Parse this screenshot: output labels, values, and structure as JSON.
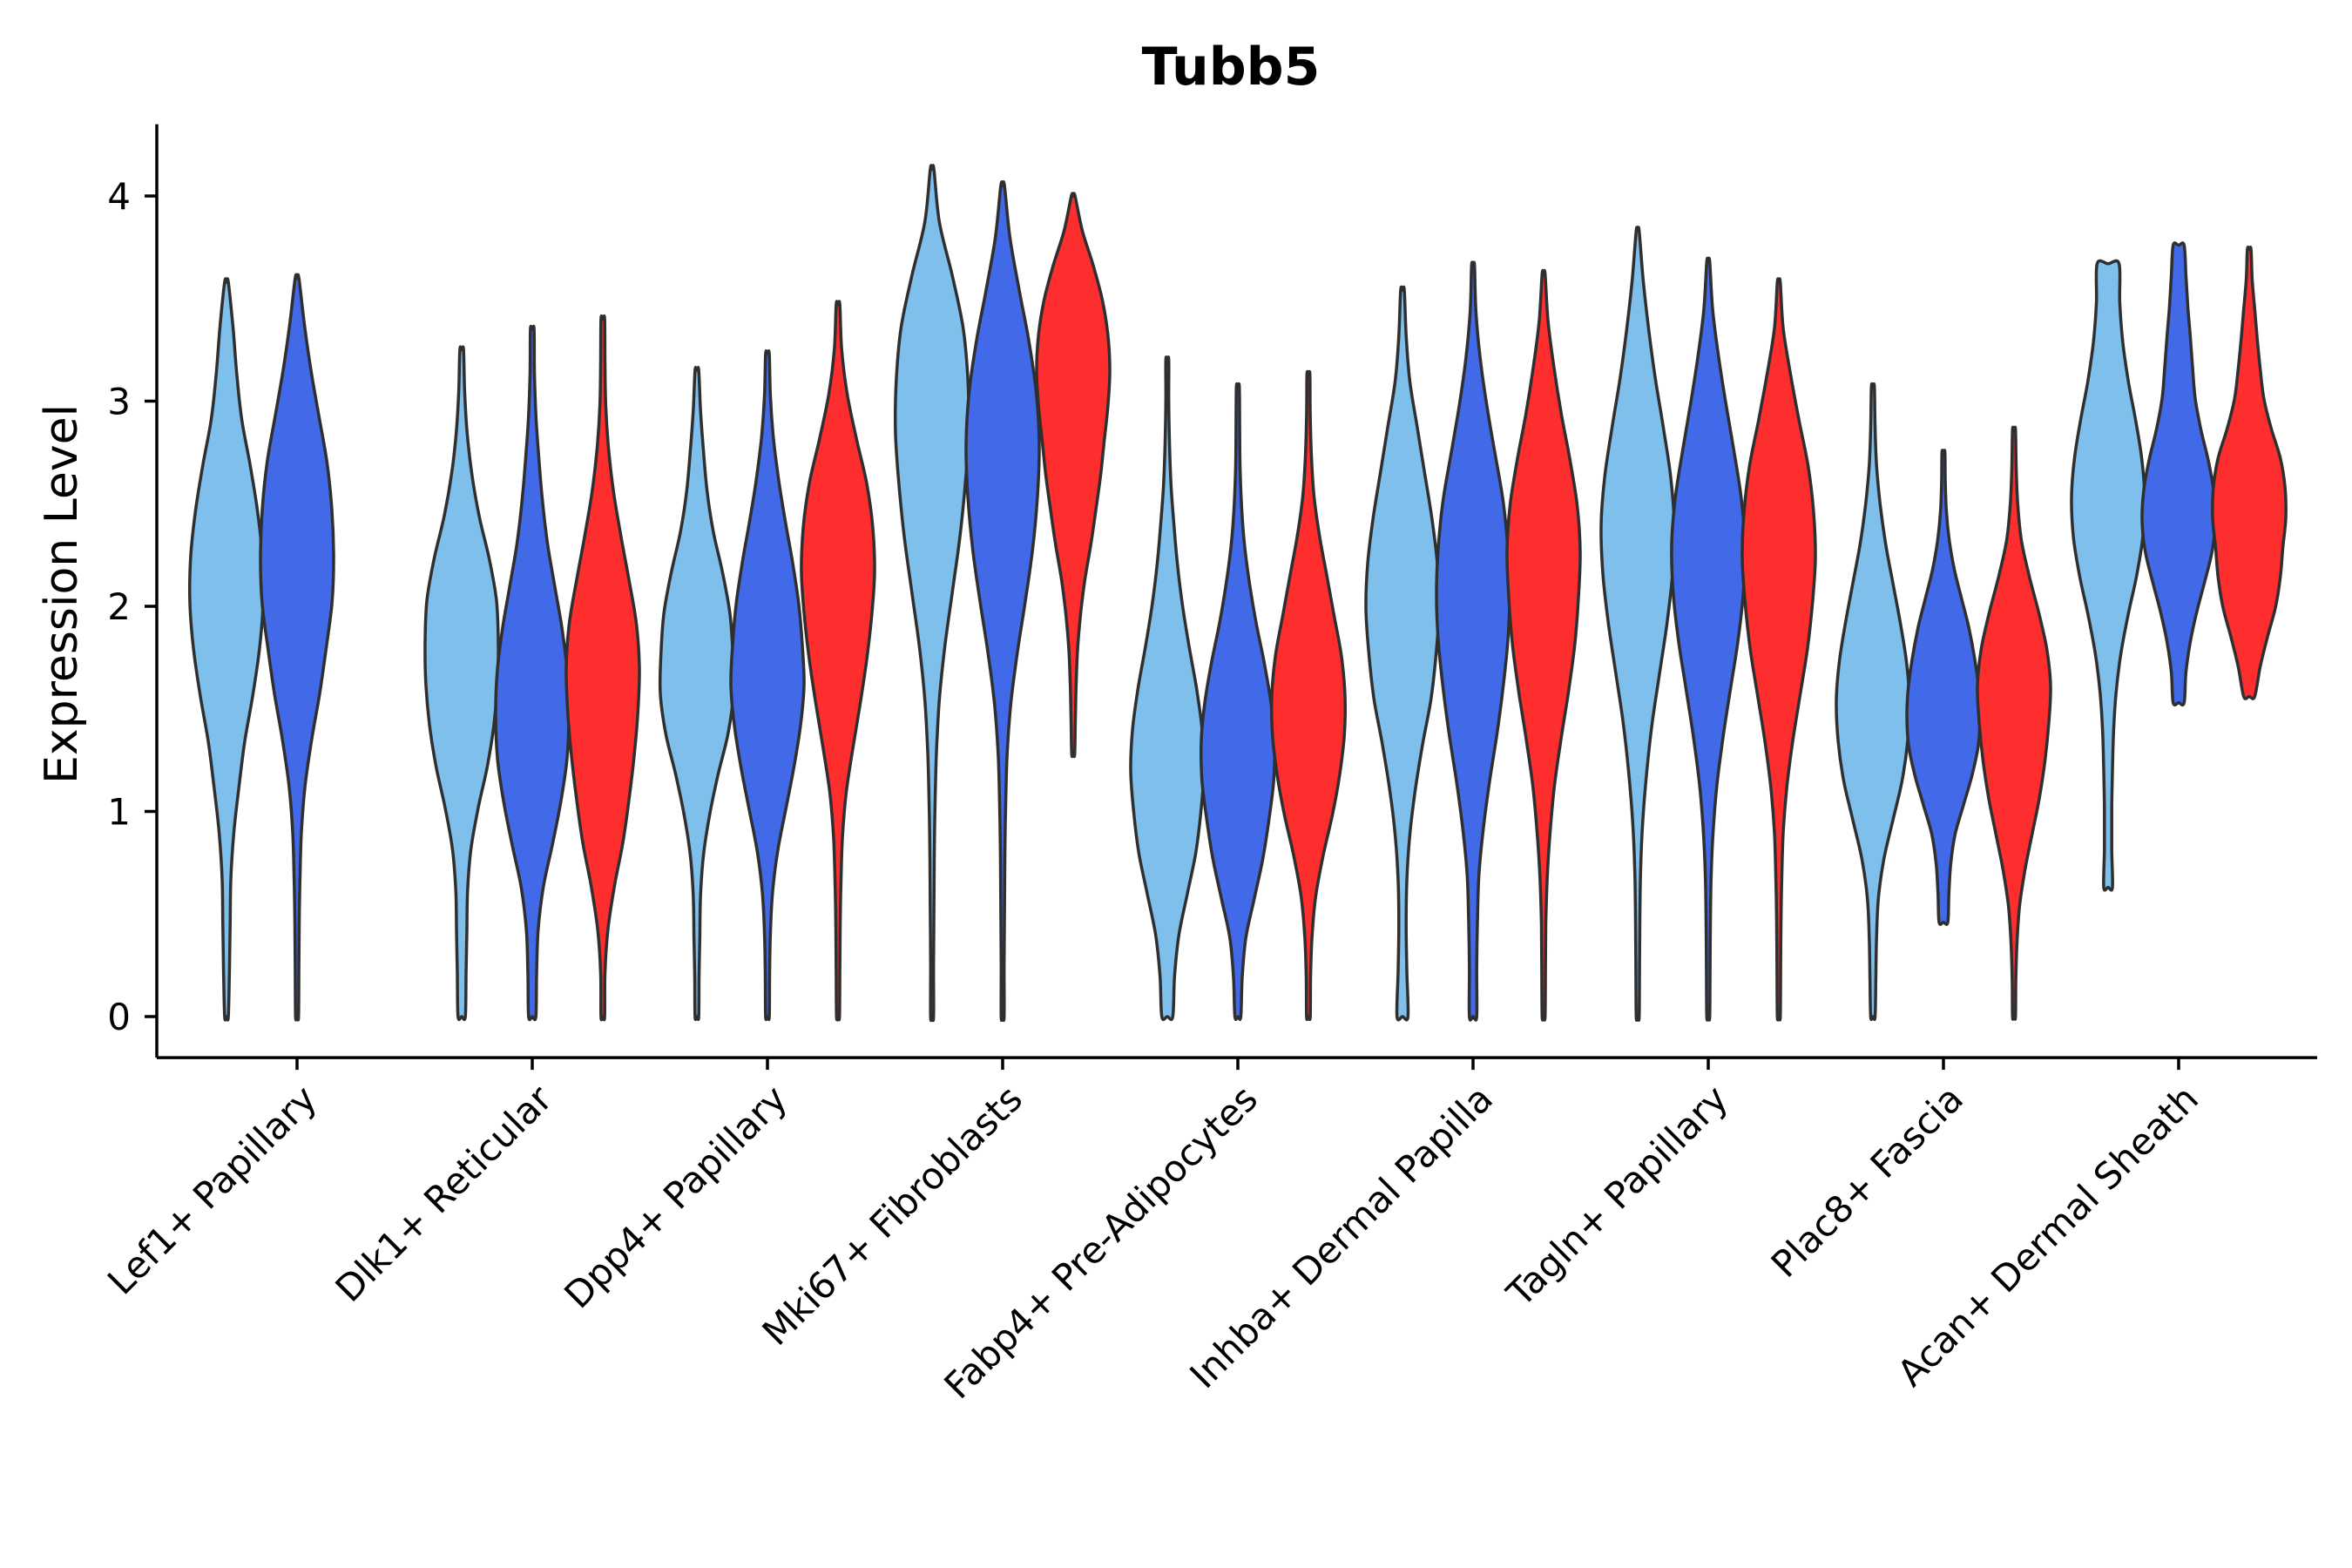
{
  "chart_data": {
    "type": "violin",
    "title": "Tubb5",
    "xlabel": "",
    "ylabel": "Expression Level",
    "ylim": [
      -0.2,
      4.35
    ],
    "yticks": [
      0,
      1,
      2,
      3,
      4
    ],
    "grid": false,
    "legend": "none",
    "categories": [
      "Lef1+ Papillary",
      "Dlk1+ Reticular",
      "Dpp4+ Papillary",
      "Mki67+ Fibroblasts",
      "Fabp4+ Pre-Adipocytes",
      "Inhba+ Dermal Papilla",
      "Tagln+ Papillary",
      "Plac8+ Fascia",
      "Acan+ Dermal Sheath"
    ],
    "series_colors": [
      "#7fbfeb",
      "#4169e8",
      "#ff2e2e"
    ],
    "violins": [
      {
        "category": 0,
        "series": 0,
        "min": 0.0,
        "max": 3.58,
        "widths": [
          0.05,
          0.08,
          0.1,
          0.12,
          0.2,
          0.34,
          0.5,
          0.72,
          0.9,
          1.0,
          0.98,
          0.85,
          0.65,
          0.42,
          0.28,
          0.18,
          0.05
        ]
      },
      {
        "category": 0,
        "series": 1,
        "min": 0.0,
        "max": 3.6,
        "widths": [
          0.04,
          0.05,
          0.06,
          0.08,
          0.12,
          0.22,
          0.4,
          0.62,
          0.8,
          0.96,
          1.0,
          0.95,
          0.82,
          0.6,
          0.38,
          0.2,
          0.05
        ]
      },
      {
        "category": 1,
        "series": 0,
        "min": 0.0,
        "max": 3.25,
        "widths": [
          0.1,
          0.12,
          0.14,
          0.16,
          0.25,
          0.45,
          0.7,
          0.88,
          0.98,
          1.0,
          0.95,
          0.75,
          0.48,
          0.28,
          0.15,
          0.08,
          0.05
        ]
      },
      {
        "category": 1,
        "series": 1,
        "min": 0.0,
        "max": 3.35,
        "widths": [
          0.1,
          0.12,
          0.16,
          0.3,
          0.55,
          0.78,
          0.95,
          1.0,
          0.96,
          0.82,
          0.62,
          0.42,
          0.28,
          0.18,
          0.1,
          0.06,
          0.05
        ]
      },
      {
        "category": 1,
        "series": 2,
        "min": 0.0,
        "max": 3.4,
        "widths": [
          0.05,
          0.06,
          0.14,
          0.32,
          0.55,
          0.72,
          0.86,
          0.96,
          1.0,
          0.92,
          0.72,
          0.5,
          0.3,
          0.16,
          0.08,
          0.06,
          0.05
        ]
      },
      {
        "category": 2,
        "series": 0,
        "min": 0.0,
        "max": 3.15,
        "widths": [
          0.05,
          0.06,
          0.08,
          0.1,
          0.18,
          0.35,
          0.58,
          0.85,
          1.0,
          0.98,
          0.9,
          0.7,
          0.45,
          0.28,
          0.18,
          0.1,
          0.05
        ]
      },
      {
        "category": 2,
        "series": 1,
        "min": 0.0,
        "max": 3.23,
        "widths": [
          0.05,
          0.06,
          0.08,
          0.14,
          0.28,
          0.5,
          0.72,
          0.9,
          1.0,
          0.95,
          0.85,
          0.68,
          0.48,
          0.3,
          0.16,
          0.08,
          0.05
        ]
      },
      {
        "category": 2,
        "series": 2,
        "min": 0.0,
        "max": 3.47,
        "widths": [
          0.04,
          0.05,
          0.06,
          0.08,
          0.12,
          0.22,
          0.4,
          0.6,
          0.78,
          0.92,
          1.0,
          0.95,
          0.78,
          0.5,
          0.25,
          0.1,
          0.05
        ]
      },
      {
        "category": 3,
        "series": 0,
        "min": 0.0,
        "max": 4.13,
        "widths": [
          0.04,
          0.04,
          0.05,
          0.06,
          0.08,
          0.12,
          0.2,
          0.35,
          0.55,
          0.75,
          0.9,
          1.0,
          0.98,
          0.85,
          0.55,
          0.2,
          0.05
        ]
      },
      {
        "category": 3,
        "series": 1,
        "min": 0.0,
        "max": 4.05,
        "widths": [
          0.04,
          0.04,
          0.05,
          0.06,
          0.08,
          0.12,
          0.22,
          0.4,
          0.62,
          0.82,
          0.95,
          1.0,
          0.92,
          0.72,
          0.45,
          0.2,
          0.05
        ]
      },
      {
        "category": 3,
        "series": 2,
        "min": 1.28,
        "max": 4.0,
        "widths": [
          0.04,
          0.06,
          0.08,
          0.12,
          0.2,
          0.32,
          0.48,
          0.62,
          0.75,
          0.85,
          0.95,
          1.0,
          0.95,
          0.8,
          0.55,
          0.25,
          0.05
        ]
      },
      {
        "category": 4,
        "series": 0,
        "min": 0.0,
        "max": 3.2,
        "widths": [
          0.15,
          0.2,
          0.32,
          0.55,
          0.78,
          0.92,
          1.0,
          0.95,
          0.8,
          0.6,
          0.42,
          0.28,
          0.18,
          0.1,
          0.06,
          0.04,
          0.04
        ]
      },
      {
        "category": 4,
        "series": 1,
        "min": 0.0,
        "max": 3.07,
        "widths": [
          0.08,
          0.12,
          0.22,
          0.45,
          0.68,
          0.85,
          0.98,
          1.0,
          0.9,
          0.72,
          0.5,
          0.32,
          0.18,
          0.1,
          0.06,
          0.05,
          0.04
        ]
      },
      {
        "category": 4,
        "series": 2,
        "min": 0.0,
        "max": 3.13,
        "widths": [
          0.05,
          0.06,
          0.1,
          0.2,
          0.4,
          0.65,
          0.85,
          0.98,
          1.0,
          0.9,
          0.7,
          0.5,
          0.3,
          0.15,
          0.08,
          0.05,
          0.04
        ]
      },
      {
        "category": 5,
        "series": 0,
        "min": 0.0,
        "max": 3.54,
        "widths": [
          0.15,
          0.12,
          0.1,
          0.12,
          0.2,
          0.35,
          0.55,
          0.78,
          0.92,
          1.0,
          0.95,
          0.8,
          0.6,
          0.4,
          0.2,
          0.1,
          0.05
        ]
      },
      {
        "category": 5,
        "series": 1,
        "min": 0.0,
        "max": 3.66,
        "widths": [
          0.1,
          0.1,
          0.12,
          0.16,
          0.28,
          0.45,
          0.65,
          0.82,
          0.95,
          1.0,
          0.95,
          0.82,
          0.6,
          0.38,
          0.2,
          0.08,
          0.04
        ]
      },
      {
        "category": 5,
        "series": 2,
        "min": 0.0,
        "max": 3.62,
        "widths": [
          0.04,
          0.05,
          0.06,
          0.1,
          0.18,
          0.3,
          0.48,
          0.68,
          0.85,
          0.95,
          1.0,
          0.92,
          0.72,
          0.48,
          0.28,
          0.12,
          0.04
        ]
      },
      {
        "category": 6,
        "series": 0,
        "min": 0.0,
        "max": 3.83,
        "widths": [
          0.04,
          0.05,
          0.06,
          0.08,
          0.14,
          0.25,
          0.4,
          0.6,
          0.8,
          0.95,
          1.0,
          0.9,
          0.7,
          0.48,
          0.3,
          0.15,
          0.04
        ]
      },
      {
        "category": 6,
        "series": 1,
        "min": 0.0,
        "max": 3.68,
        "widths": [
          0.04,
          0.05,
          0.06,
          0.08,
          0.14,
          0.25,
          0.42,
          0.62,
          0.82,
          0.96,
          1.0,
          0.9,
          0.7,
          0.48,
          0.28,
          0.12,
          0.04
        ]
      },
      {
        "category": 6,
        "series": 2,
        "min": 0.0,
        "max": 3.58,
        "widths": [
          0.04,
          0.05,
          0.06,
          0.08,
          0.12,
          0.22,
          0.38,
          0.58,
          0.78,
          0.92,
          1.0,
          0.95,
          0.8,
          0.55,
          0.32,
          0.12,
          0.04
        ]
      },
      {
        "category": 7,
        "series": 0,
        "min": 0.0,
        "max": 3.07,
        "widths": [
          0.06,
          0.08,
          0.1,
          0.15,
          0.3,
          0.55,
          0.8,
          0.95,
          1.0,
          0.92,
          0.75,
          0.55,
          0.35,
          0.2,
          0.1,
          0.06,
          0.04
        ]
      },
      {
        "category": 7,
        "series": 1,
        "min": 0.46,
        "max": 2.75,
        "widths": [
          0.12,
          0.15,
          0.2,
          0.32,
          0.55,
          0.78,
          0.95,
          1.0,
          0.96,
          0.85,
          0.7,
          0.5,
          0.3,
          0.16,
          0.08,
          0.05,
          0.04
        ]
      },
      {
        "category": 7,
        "series": 2,
        "min": 0.0,
        "max": 2.86,
        "widths": [
          0.04,
          0.05,
          0.08,
          0.15,
          0.3,
          0.5,
          0.7,
          0.85,
          0.95,
          1.0,
          0.9,
          0.68,
          0.42,
          0.2,
          0.1,
          0.06,
          0.04
        ]
      },
      {
        "category": 8,
        "series": 0,
        "min": 0.63,
        "max": 3.67,
        "widths": [
          0.12,
          0.1,
          0.1,
          0.12,
          0.15,
          0.22,
          0.35,
          0.55,
          0.78,
          0.95,
          1.0,
          0.92,
          0.75,
          0.55,
          0.4,
          0.32,
          0.3
        ]
      },
      {
        "category": 8,
        "series": 1,
        "min": 1.53,
        "max": 3.76,
        "widths": [
          0.15,
          0.2,
          0.32,
          0.5,
          0.72,
          0.92,
          1.0,
          0.95,
          0.8,
          0.6,
          0.45,
          0.38,
          0.32,
          0.25,
          0.2,
          0.15
        ]
      },
      {
        "category": 8,
        "series": 2,
        "min": 1.56,
        "max": 3.74,
        "widths": [
          0.15,
          0.3,
          0.5,
          0.72,
          0.85,
          0.92,
          1.0,
          0.98,
          0.85,
          0.6,
          0.4,
          0.3,
          0.22,
          0.15,
          0.08,
          0.05
        ]
      }
    ]
  }
}
